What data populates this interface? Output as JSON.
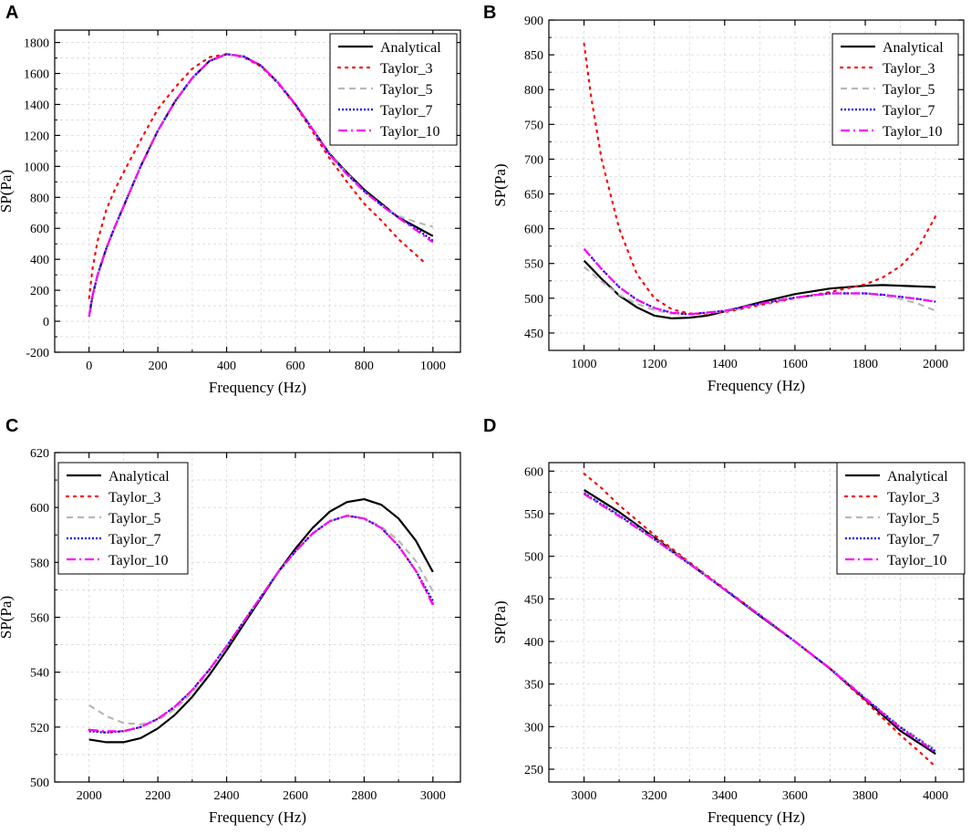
{
  "chart_data": [
    {
      "panel": "A",
      "type": "line",
      "xlabel": "Frequency (Hz)",
      "ylabel": "SP(Pa)",
      "xlim": [
        -100,
        1080
      ],
      "ylim": [
        -200,
        1880
      ],
      "xticks": [
        0,
        200,
        400,
        600,
        800,
        1000
      ],
      "yticks": [
        -200,
        0,
        200,
        400,
        600,
        800,
        1000,
        1200,
        1400,
        1600,
        1800
      ],
      "grid": true,
      "legend_position": "top-right",
      "series": [
        {
          "name": "Analytical",
          "x": [
            0,
            10,
            25,
            50,
            75,
            100,
            150,
            200,
            250,
            300,
            350,
            400,
            450,
            500,
            550,
            600,
            650,
            700,
            750,
            800,
            850,
            900,
            950,
            1000
          ],
          "y": [
            30,
            165,
            300,
            470,
            610,
            740,
            1000,
            1230,
            1420,
            1570,
            1680,
            1725,
            1710,
            1650,
            1540,
            1400,
            1240,
            1080,
            960,
            850,
            760,
            670,
            610,
            550
          ]
        },
        {
          "name": "Taylor_3",
          "x": [
            0,
            10,
            25,
            50,
            75,
            100,
            150,
            200,
            250,
            300,
            350,
            400,
            450,
            500,
            550,
            600,
            650,
            700,
            750,
            800,
            850,
            900,
            950,
            980
          ],
          "y": [
            150,
            340,
            520,
            720,
            850,
            960,
            1170,
            1370,
            1510,
            1630,
            1705,
            1725,
            1705,
            1645,
            1535,
            1395,
            1225,
            1050,
            900,
            760,
            650,
            530,
            430,
            370
          ]
        },
        {
          "name": "Taylor_5",
          "x": [
            0,
            10,
            25,
            50,
            75,
            100,
            150,
            200,
            250,
            300,
            350,
            400,
            450,
            500,
            550,
            600,
            650,
            700,
            750,
            800,
            850,
            900,
            950,
            1000
          ],
          "y": [
            30,
            165,
            305,
            472,
            612,
            742,
            1002,
            1232,
            1420,
            1570,
            1680,
            1725,
            1712,
            1652,
            1542,
            1402,
            1242,
            1078,
            955,
            840,
            750,
            680,
            640,
            610
          ]
        },
        {
          "name": "Taylor_7",
          "x": [
            0,
            10,
            25,
            50,
            75,
            100,
            150,
            200,
            250,
            300,
            350,
            400,
            450,
            500,
            550,
            600,
            650,
            700,
            750,
            800,
            850,
            900,
            950,
            1000
          ],
          "y": [
            30,
            165,
            300,
            470,
            610,
            740,
            1000,
            1230,
            1420,
            1570,
            1680,
            1725,
            1710,
            1650,
            1540,
            1400,
            1240,
            1075,
            950,
            840,
            750,
            670,
            600,
            520
          ]
        },
        {
          "name": "Taylor_10",
          "x": [
            0,
            10,
            25,
            50,
            75,
            100,
            150,
            200,
            250,
            300,
            350,
            400,
            450,
            500,
            550,
            600,
            650,
            700,
            750,
            800,
            850,
            900,
            950,
            1000
          ],
          "y": [
            30,
            165,
            300,
            470,
            610,
            740,
            1000,
            1230,
            1420,
            1570,
            1680,
            1725,
            1710,
            1650,
            1540,
            1400,
            1240,
            1075,
            948,
            838,
            748,
            668,
            590,
            510
          ]
        }
      ]
    },
    {
      "panel": "B",
      "type": "line",
      "xlabel": "Frequency (Hz)",
      "ylabel": "SP(Pa)",
      "xlim": [
        900,
        2080
      ],
      "ylim": [
        425,
        900
      ],
      "xticks": [
        1000,
        1200,
        1400,
        1600,
        1800,
        2000
      ],
      "yticks": [
        450,
        500,
        550,
        600,
        650,
        700,
        750,
        800,
        850,
        900
      ],
      "grid": true,
      "legend_position": "top-right",
      "series": [
        {
          "name": "Analytical",
          "x": [
            1000,
            1050,
            1100,
            1150,
            1200,
            1250,
            1300,
            1350,
            1400,
            1500,
            1600,
            1700,
            1800,
            1850,
            1900,
            2000
          ],
          "y": [
            554,
            528,
            504,
            487,
            475,
            471,
            472,
            475,
            481,
            494,
            506,
            514,
            518,
            519,
            518,
            516
          ]
        },
        {
          "name": "Taylor_3",
          "x": [
            1000,
            1020,
            1050,
            1100,
            1150,
            1200,
            1250,
            1300,
            1350,
            1400,
            1500,
            1600,
            1700,
            1800,
            1850,
            1900,
            1950,
            2000
          ],
          "y": [
            866,
            790,
            700,
            600,
            535,
            500,
            484,
            478,
            478,
            480,
            490,
            500,
            509,
            520,
            530,
            546,
            572,
            618
          ]
        },
        {
          "name": "Taylor_5",
          "x": [
            1000,
            1050,
            1100,
            1150,
            1200,
            1250,
            1300,
            1400,
            1500,
            1600,
            1700,
            1800,
            1850,
            1900,
            1950,
            2000
          ],
          "y": [
            545,
            524,
            505,
            492,
            483,
            478,
            477,
            481,
            491,
            501,
            507,
            507,
            504,
            499,
            492,
            482
          ]
        },
        {
          "name": "Taylor_7",
          "x": [
            1000,
            1050,
            1100,
            1150,
            1200,
            1250,
            1300,
            1400,
            1500,
            1600,
            1700,
            1800,
            1850,
            1900,
            1950,
            2000
          ],
          "y": [
            571,
            542,
            516,
            498,
            486,
            479,
            477,
            482,
            492,
            501,
            507,
            507,
            505,
            502,
            499,
            495
          ]
        },
        {
          "name": "Taylor_10",
          "x": [
            1000,
            1050,
            1100,
            1150,
            1200,
            1250,
            1300,
            1400,
            1500,
            1600,
            1700,
            1800,
            1850,
            1900,
            1950,
            2000
          ],
          "y": [
            571,
            542,
            516,
            498,
            486,
            479,
            477,
            482,
            492,
            501,
            507,
            507,
            505,
            502,
            499,
            495
          ]
        }
      ]
    },
    {
      "panel": "C",
      "type": "line",
      "xlabel": "Frequency (Hz)",
      "ylabel": "SP(Pa)",
      "xlim": [
        1900,
        3080
      ],
      "ylim": [
        500,
        620
      ],
      "xticks": [
        2000,
        2200,
        2400,
        2600,
        2800,
        3000
      ],
      "yticks": [
        500,
        520,
        540,
        560,
        580,
        600,
        620
      ],
      "grid": true,
      "legend_position": "top-left",
      "series": [
        {
          "name": "Analytical",
          "x": [
            2000,
            2050,
            2100,
            2150,
            2200,
            2250,
            2300,
            2350,
            2400,
            2450,
            2500,
            2550,
            2600,
            2650,
            2700,
            2750,
            2800,
            2850,
            2900,
            2950,
            3000
          ],
          "y": [
            515.5,
            514.5,
            514.5,
            516,
            519.5,
            524.5,
            531,
            539,
            548,
            557.5,
            567,
            576.5,
            585,
            592.5,
            598.5,
            602,
            603,
            601,
            596,
            588,
            576.5
          ]
        },
        {
          "name": "Taylor_3",
          "x": [
            2000,
            2050,
            2100,
            2150,
            2200,
            2250,
            2300,
            2350,
            2400,
            2450,
            2500,
            2550,
            2600,
            2650,
            2700,
            2750,
            2800,
            2850,
            2900,
            2950,
            3000
          ],
          "y": [
            519,
            518,
            518.5,
            520,
            523,
            527.5,
            533.5,
            541,
            549.5,
            558.5,
            567.5,
            576.5,
            584,
            590.5,
            595,
            597,
            596,
            592.5,
            586,
            577,
            565
          ]
        },
        {
          "name": "Taylor_5",
          "x": [
            2000,
            2050,
            2100,
            2150,
            2200,
            2250,
            2300,
            2350,
            2400,
            2450,
            2500,
            2550,
            2600,
            2650,
            2700,
            2750,
            2800,
            2850,
            2900,
            2950,
            3000
          ],
          "y": [
            528,
            524,
            521.5,
            521,
            522.5,
            526.5,
            532.5,
            540.5,
            549.5,
            558.5,
            567.5,
            576.5,
            584,
            590.5,
            595,
            597,
            596,
            593,
            588,
            580.5,
            569.5
          ]
        },
        {
          "name": "Taylor_7",
          "x": [
            2000,
            2050,
            2100,
            2150,
            2200,
            2250,
            2300,
            2350,
            2400,
            2450,
            2500,
            2550,
            2600,
            2650,
            2700,
            2750,
            2800,
            2850,
            2900,
            2950,
            3000
          ],
          "y": [
            518.5,
            518,
            518.5,
            520,
            523,
            527.5,
            533.5,
            541,
            549.5,
            558.5,
            567.5,
            576.5,
            584,
            590.5,
            595,
            597,
            596,
            592.5,
            586,
            577,
            566
          ]
        },
        {
          "name": "Taylor_10",
          "x": [
            2000,
            2050,
            2100,
            2150,
            2200,
            2250,
            2300,
            2350,
            2400,
            2450,
            2500,
            2550,
            2600,
            2650,
            2700,
            2750,
            2800,
            2850,
            2900,
            2950,
            3000
          ],
          "y": [
            519,
            518.5,
            518.5,
            520,
            523,
            527.5,
            533.5,
            541,
            549.5,
            558.5,
            567.5,
            576.5,
            584,
            590.5,
            595,
            597,
            596,
            592.5,
            586,
            577,
            564.5
          ]
        }
      ]
    },
    {
      "panel": "D",
      "type": "line",
      "xlabel": "Frequency (Hz)",
      "ylabel": "SP(Pa)",
      "xlim": [
        2900,
        4080
      ],
      "ylim": [
        235,
        610
      ],
      "xticks": [
        3000,
        3200,
        3400,
        3600,
        3800,
        4000
      ],
      "yticks": [
        250,
        300,
        350,
        400,
        450,
        500,
        550,
        600
      ],
      "grid": true,
      "legend_position": "top-right",
      "series": [
        {
          "name": "Analytical",
          "x": [
            3000,
            3100,
            3200,
            3300,
            3400,
            3500,
            3600,
            3700,
            3800,
            3900,
            4000
          ],
          "y": [
            578,
            552,
            522,
            492,
            461,
            430,
            400,
            368,
            332,
            295,
            268
          ]
        },
        {
          "name": "Taylor_3",
          "x": [
            3000,
            3050,
            3100,
            3200,
            3300,
            3400,
            3500,
            3600,
            3700,
            3800,
            3900,
            3950,
            4000
          ],
          "y": [
            597,
            580,
            560,
            525,
            493,
            462,
            431,
            400,
            368,
            330,
            290,
            272,
            253
          ]
        },
        {
          "name": "Taylor_5",
          "x": [
            3000,
            3100,
            3200,
            3300,
            3400,
            3500,
            3600,
            3700,
            3800,
            3900,
            4000
          ],
          "y": [
            575,
            549,
            521,
            492,
            461,
            431,
            400,
            369,
            334,
            300,
            273
          ]
        },
        {
          "name": "Taylor_7",
          "x": [
            3000,
            3100,
            3200,
            3300,
            3400,
            3500,
            3600,
            3700,
            3800,
            3900,
            4000
          ],
          "y": [
            574,
            548,
            520,
            491,
            461,
            431,
            400,
            368,
            333,
            299,
            271
          ]
        },
        {
          "name": "Taylor_10",
          "x": [
            3000,
            3100,
            3200,
            3300,
            3400,
            3500,
            3600,
            3700,
            3800,
            3900,
            4000
          ],
          "y": [
            573,
            547,
            520,
            491,
            461,
            431,
            400,
            368,
            333,
            298,
            270
          ]
        }
      ]
    }
  ],
  "series_styles": {
    "Analytical": {
      "color": "#000000",
      "dash": ""
    },
    "Taylor_3": {
      "color": "#ff0000",
      "dash": "dotted"
    },
    "Taylor_5": {
      "color": "#b8b8b8",
      "dash": "dashed"
    },
    "Taylor_7": {
      "color": "#0000ff",
      "dash": "dense-dotted"
    },
    "Taylor_10": {
      "color": "#ff00ff",
      "dash": "dash-dot"
    }
  }
}
